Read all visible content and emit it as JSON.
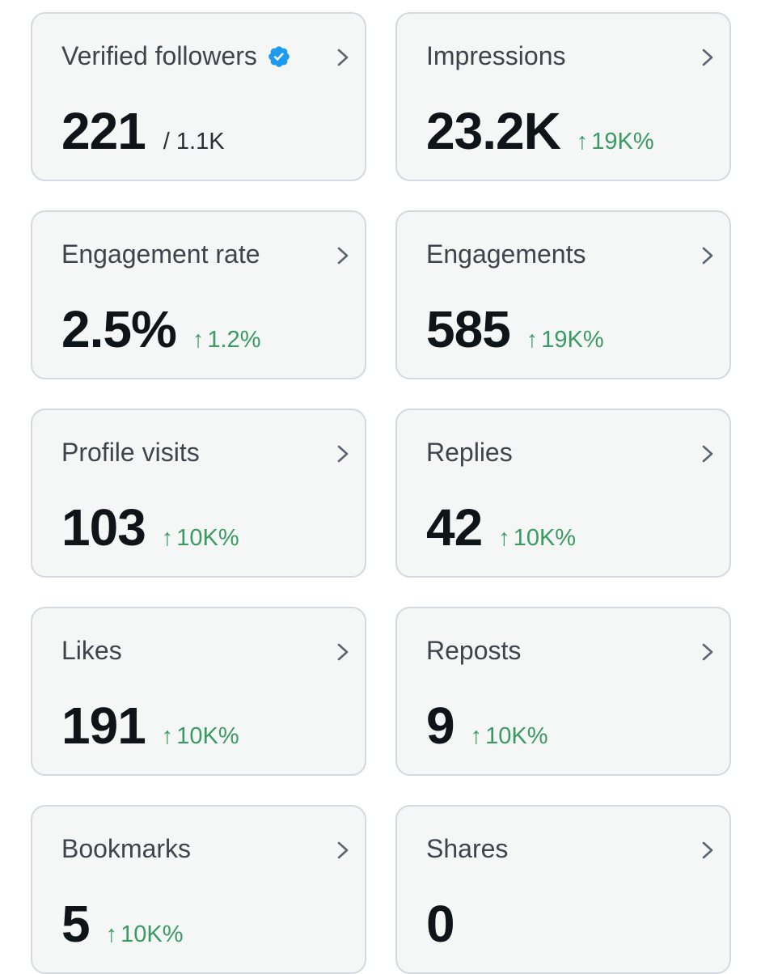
{
  "cards": [
    {
      "title": "Verified followers",
      "value": "221",
      "sub": "/ 1.1K",
      "change": ""
    },
    {
      "title": "Impressions",
      "value": "23.2K",
      "sub": "",
      "change": "19K%"
    },
    {
      "title": "Engagement rate",
      "value": "2.5%",
      "sub": "",
      "change": "1.2%"
    },
    {
      "title": "Engagements",
      "value": "585",
      "sub": "",
      "change": "19K%"
    },
    {
      "title": "Profile visits",
      "value": "103",
      "sub": "",
      "change": "10K%"
    },
    {
      "title": "Replies",
      "value": "42",
      "sub": "",
      "change": "10K%"
    },
    {
      "title": "Likes",
      "value": "191",
      "sub": "",
      "change": "10K%"
    },
    {
      "title": "Reposts",
      "value": "9",
      "sub": "",
      "change": "10K%"
    },
    {
      "title": "Bookmarks",
      "value": "5",
      "sub": "",
      "change": "10K%"
    },
    {
      "title": "Shares",
      "value": "0",
      "sub": "",
      "change": ""
    }
  ],
  "icons": {
    "verified": "verified-badge-icon",
    "chevron": "chevron-right-icon",
    "arrow": "arrow-up-icon"
  },
  "colors": {
    "card_background": "#f5f6f6",
    "card_border": "#d3d9de",
    "title_text": "#3d444b",
    "value_text": "#0f1419",
    "positive_change": "#3a9a63",
    "verified_badge": "#1d9bf0"
  }
}
